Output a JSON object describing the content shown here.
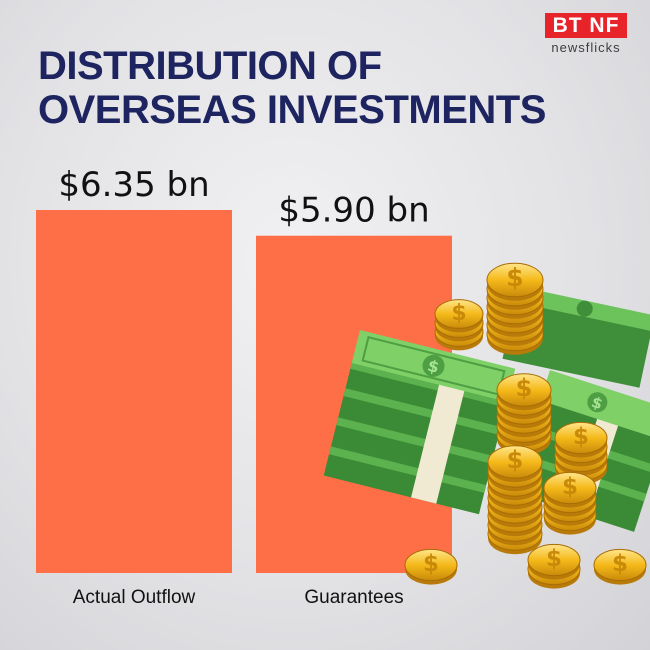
{
  "brand": {
    "logo_main": "BT NF",
    "logo_sub": "newsflicks"
  },
  "title_lines": [
    "DISTRIBUTION OF",
    "OVERSEAS INVESTMENTS"
  ],
  "colors": {
    "bar": "#ff6f47",
    "title": "#1d2460",
    "logo": "#e8242b"
  },
  "illustration": {
    "icon": "money-stack-and-gold-coins-icon"
  },
  "chart_data": {
    "type": "bar",
    "categories": [
      "Actual Outflow",
      "Guarantees"
    ],
    "values": [
      6.35,
      5.9
    ],
    "value_labels": [
      "$6.35 bn",
      "$5.90 bn"
    ],
    "ylim": [
      0,
      6.35
    ]
  }
}
